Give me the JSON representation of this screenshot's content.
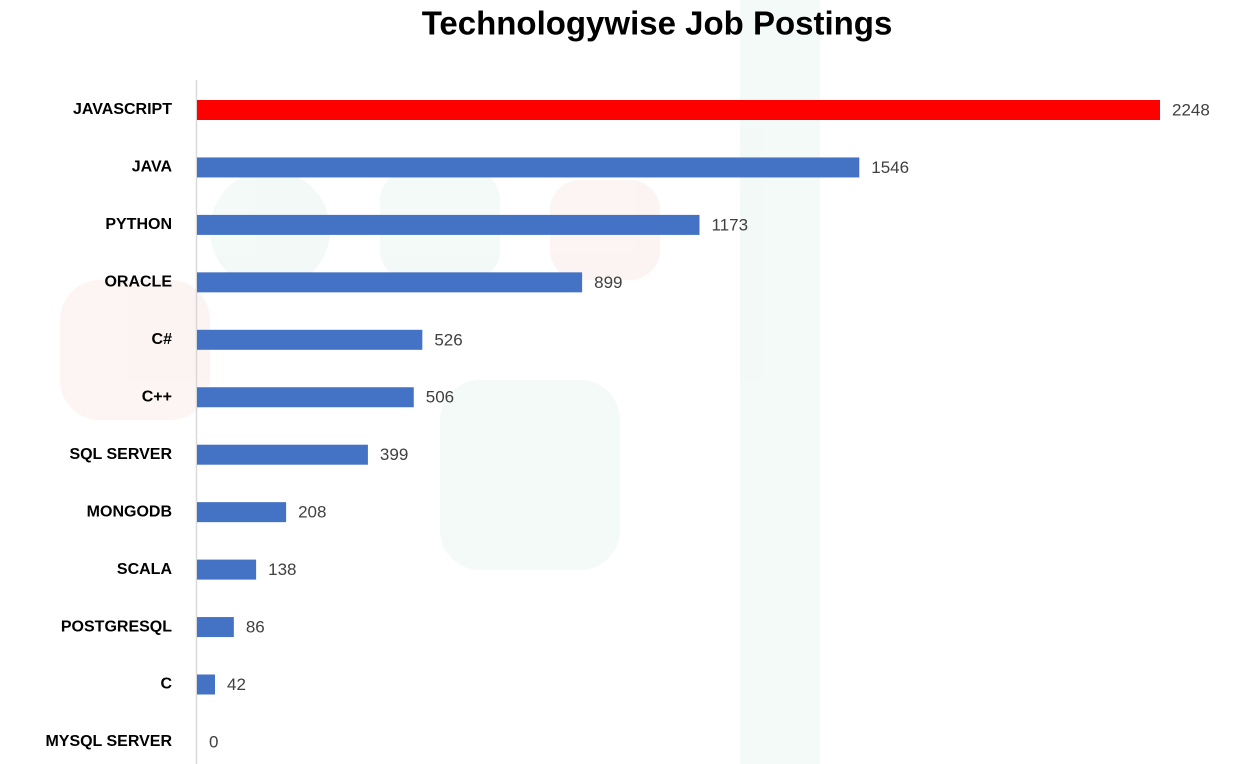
{
  "chart_data": {
    "type": "bar",
    "orientation": "horizontal",
    "title": "Technologywise Job Postings",
    "categories": [
      "JAVASCRIPT",
      "JAVA",
      "PYTHON",
      "ORACLE",
      "C#",
      "C++",
      "SQL SERVER",
      "MONGODB",
      "SCALA",
      "POSTGRESQL",
      "C",
      "MYSQL SERVER"
    ],
    "values": [
      2248,
      1546,
      1173,
      899,
      526,
      506,
      399,
      208,
      138,
      86,
      42,
      0
    ],
    "colors": [
      "#ff0000",
      "#4472c4",
      "#4472c4",
      "#4472c4",
      "#4472c4",
      "#4472c4",
      "#4472c4",
      "#4472c4",
      "#4472c4",
      "#4472c4",
      "#4472c4",
      "#4472c4"
    ]
  }
}
